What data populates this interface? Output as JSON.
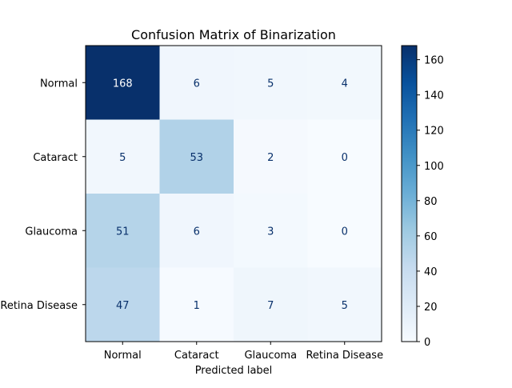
{
  "chart_data": {
    "type": "heatmap",
    "title": "Confusion Matrix of Binarization",
    "xlabel": "Predicted label",
    "ylabel": "",
    "x_categories": [
      "Normal",
      "Cataract",
      "Glaucoma",
      "Retina Disease"
    ],
    "y_categories": [
      "Normal",
      "Cataract",
      "Glaucoma",
      "Retina Disease"
    ],
    "matrix": [
      [
        168,
        6,
        5,
        4
      ],
      [
        5,
        53,
        2,
        0
      ],
      [
        51,
        6,
        3,
        0
      ],
      [
        47,
        1,
        7,
        5
      ]
    ],
    "colormap": "Blues",
    "color_range": [
      0,
      168
    ],
    "colorbar_ticks": [
      0,
      20,
      40,
      60,
      80,
      100,
      120,
      140,
      160
    ],
    "grid": false
  }
}
